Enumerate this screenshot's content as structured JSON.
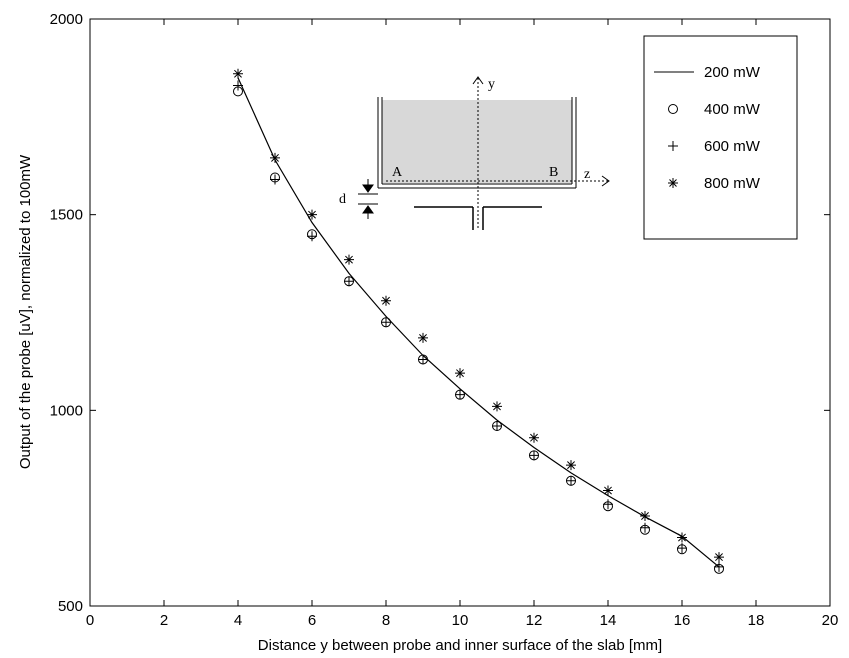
{
  "chart_data": {
    "type": "line",
    "xlabel": "Distance y between probe and inner surface of the slab [mm]",
    "ylabel": "Output of the probe [uV], normalized to 100mW",
    "xlim": [
      0,
      20
    ],
    "ylim": [
      500,
      2000
    ],
    "x_ticks": [
      "0",
      "2",
      "4",
      "6",
      "8",
      "10",
      "12",
      "14",
      "16",
      "18",
      "20"
    ],
    "y_ticks": [
      "500",
      "1000",
      "1500",
      "2000"
    ],
    "grid": false,
    "legend_position": "top-right",
    "x": [
      4,
      5,
      6,
      7,
      8,
      9,
      10,
      11,
      12,
      13,
      14,
      15,
      16,
      17
    ],
    "series": [
      {
        "name": "200 mW",
        "style": "line",
        "marker": "none",
        "values": [
          1850,
          1640,
          1480,
          1350,
          1240,
          1140,
          1055,
          975,
          905,
          840,
          782,
          728,
          678,
          600
        ]
      },
      {
        "name": "400 mW",
        "style": "markers",
        "marker": "circle",
        "values": [
          1815,
          1595,
          1450,
          1330,
          1225,
          1130,
          1040,
          960,
          885,
          820,
          755,
          695,
          645,
          595
        ]
      },
      {
        "name": "600 mW",
        "style": "markers",
        "marker": "plus",
        "values": [
          1830,
          1590,
          1445,
          1330,
          1225,
          1130,
          1040,
          960,
          885,
          820,
          760,
          700,
          648,
          600
        ]
      },
      {
        "name": "800 mW",
        "style": "markers",
        "marker": "star",
        "values": [
          1860,
          1645,
          1500,
          1385,
          1280,
          1185,
          1095,
          1010,
          930,
          860,
          795,
          730,
          675,
          625
        ]
      }
    ]
  },
  "inset": {
    "label_y": "y",
    "label_z": "z",
    "label_a": "A",
    "label_b": "B",
    "label_d": "d"
  }
}
